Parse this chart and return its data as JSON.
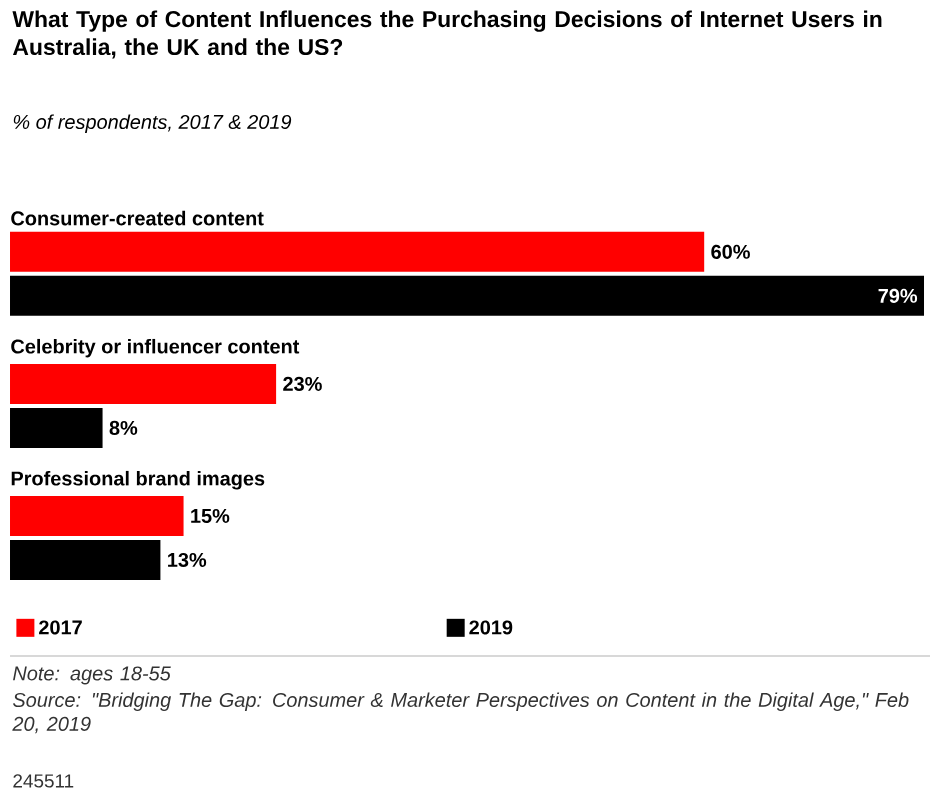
{
  "chart_data": {
    "type": "bar",
    "orientation": "horizontal",
    "title": "What Type of Content Influences the Purchasing Decisions of Internet Users in Australia, the UK and the US?",
    "subtitle": "% of respondents, 2017 & 2019",
    "categories": [
      "Consumer-created content",
      "Celebrity or influencer content",
      "Professional brand images"
    ],
    "series": [
      {
        "name": "2017",
        "color": "#ff0000",
        "values": [
          60,
          23,
          15
        ],
        "value_labels": [
          "60%",
          "23%",
          "15%"
        ]
      },
      {
        "name": "2019",
        "color": "#000000",
        "values": [
          79,
          8,
          13
        ],
        "value_labels": [
          "79%",
          "8%",
          "13%"
        ]
      }
    ],
    "legend": "bottom",
    "annotations": [
      "Note: ages 18-55",
      "Source: \"Bridging The Gap: Consumer & Marketer Perspectives on Content in the Digital Age,\" Feb 20, 2019",
      "245511"
    ]
  }
}
